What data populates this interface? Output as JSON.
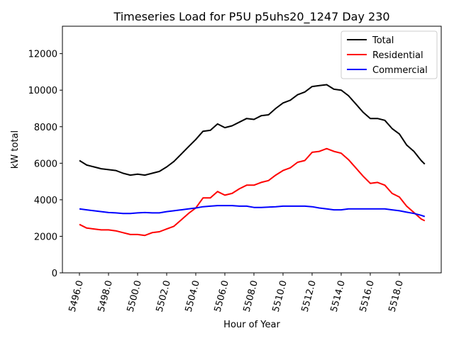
{
  "chart_data": {
    "type": "line",
    "title": "Timeseries Load for P5U p5uhs20_1247  Day 230",
    "xlabel": "Hour of Year",
    "ylabel": "kW total",
    "xlim": [
      5494.83,
      5520.88
    ],
    "ylim": [
      0,
      13500
    ],
    "xticks": [
      5496,
      5498,
      5500,
      5502,
      5504,
      5506,
      5508,
      5510,
      5512,
      5514,
      5516,
      5518
    ],
    "xtick_labels": [
      "5496.0",
      "5498.0",
      "5500.0",
      "5502.0",
      "5504.0",
      "5506.0",
      "5508.0",
      "5510.0",
      "5512.0",
      "5514.0",
      "5516.0",
      "5518.0"
    ],
    "yticks": [
      0,
      2000,
      4000,
      6000,
      8000,
      10000,
      12000
    ],
    "ytick_labels": [
      "0",
      "2000",
      "4000",
      "6000",
      "8000",
      "10000",
      "12000"
    ],
    "grid": false,
    "legend_position": "top-right",
    "x": [
      5496,
      5496.5,
      5497,
      5497.5,
      5498,
      5498.5,
      5499,
      5499.5,
      5500,
      5500.5,
      5501,
      5501.5,
      5502,
      5502.5,
      5503,
      5503.5,
      5504,
      5504.5,
      5505,
      5505.5,
      5506,
      5506.5,
      5507,
      5507.5,
      5508,
      5508.5,
      5509,
      5509.5,
      5510,
      5510.5,
      5511,
      5511.5,
      5512,
      5512.5,
      5513,
      5513.5,
      5514,
      5514.5,
      5515,
      5515.5,
      5516,
      5516.5,
      5517,
      5517.5,
      5518,
      5518.5,
      5519,
      5519.5,
      5519.75
    ],
    "series": [
      {
        "name": "Total",
        "color": "#000000",
        "values": [
          6150,
          5900,
          5800,
          5700,
          5650,
          5600,
          5450,
          5350,
          5400,
          5350,
          5450,
          5550,
          5800,
          6100,
          6500,
          6900,
          7300,
          7750,
          7800,
          8150,
          7950,
          8050,
          8250,
          8450,
          8400,
          8600,
          8650,
          9000,
          9300,
          9450,
          9750,
          9900,
          10200,
          10250,
          10300,
          10050,
          10000,
          9700,
          9250,
          8800,
          8450,
          8450,
          8350,
          7900,
          7600,
          7000,
          6650,
          6150,
          5950
        ]
      },
      {
        "name": "Residential",
        "color": "#ff0000",
        "values": [
          2650,
          2450,
          2400,
          2350,
          2350,
          2300,
          2200,
          2100,
          2100,
          2050,
          2200,
          2250,
          2400,
          2550,
          2900,
          3250,
          3550,
          4100,
          4100,
          4450,
          4250,
          4350,
          4600,
          4800,
          4800,
          4950,
          5050,
          5350,
          5600,
          5750,
          6050,
          6150,
          6600,
          6650,
          6800,
          6650,
          6550,
          6200,
          5750,
          5300,
          4900,
          4950,
          4800,
          4350,
          4150,
          3650,
          3300,
          2950,
          2850
        ]
      },
      {
        "name": "Commercial",
        "color": "#0000ff",
        "values": [
          3500,
          3450,
          3400,
          3350,
          3300,
          3280,
          3250,
          3250,
          3280,
          3300,
          3280,
          3280,
          3350,
          3400,
          3450,
          3500,
          3550,
          3620,
          3650,
          3680,
          3680,
          3680,
          3650,
          3650,
          3580,
          3580,
          3600,
          3620,
          3650,
          3650,
          3650,
          3650,
          3620,
          3550,
          3500,
          3450,
          3450,
          3500,
          3500,
          3500,
          3500,
          3500,
          3500,
          3450,
          3400,
          3320,
          3250,
          3150,
          3080
        ]
      }
    ]
  }
}
